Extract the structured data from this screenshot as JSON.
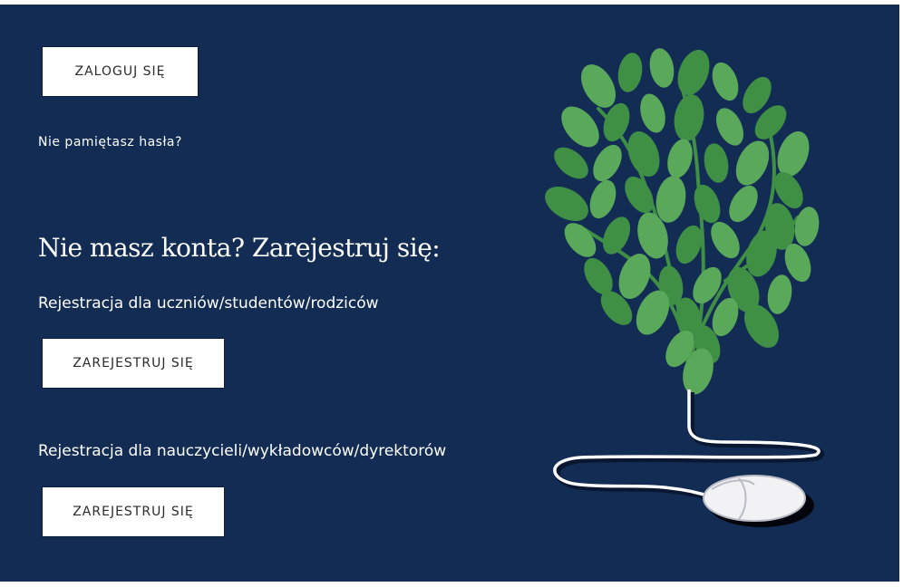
{
  "login": {
    "button_label": "ZALOGUJ SIĘ",
    "forgot_password_link": "Nie pamiętasz hasła?"
  },
  "register": {
    "heading": "Nie masz konta? Zarejestruj się:",
    "students": {
      "label": "Rejestracja dla uczniów/studentów/rodziców",
      "button_label": "ZAREJESTRUJ SIĘ"
    },
    "teachers": {
      "label": "Rejestracja dla nauczycieli/wykładowców/dyrektorów",
      "button_label": "ZAREJESTRUJ SIĘ"
    }
  },
  "illustration": {
    "icon": "tree-head-mouse-illustration"
  },
  "colors": {
    "background": "#132c54",
    "leaf": "#3f8f45",
    "leaf_light": "#5aa85a",
    "button": "#ffffff"
  }
}
